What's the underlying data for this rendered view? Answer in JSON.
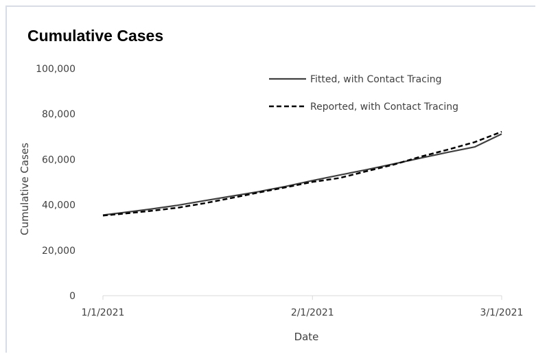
{
  "chart_data": {
    "type": "line",
    "title": "Cumulative Cases",
    "xlabel": "Date",
    "ylabel": "Cumulative Cases",
    "xlim": [
      "2021-01-01",
      "2021-03-01"
    ],
    "ylim": [
      0,
      100000
    ],
    "y_ticks": [
      0,
      20000,
      40000,
      60000,
      80000,
      100000
    ],
    "y_tick_labels": [
      "0",
      "20,000",
      "40,000",
      "60,000",
      "80,000",
      "100,000"
    ],
    "x_tick_labels": [
      "1/1/2021",
      "2/1/2021",
      "3/1/2021"
    ],
    "x_ticks": [
      "2021-01-01",
      "2021-02-01",
      "2021-03-01"
    ],
    "grid": false,
    "legend_position": "top-right",
    "series": [
      {
        "name": "Fitted, with Contact Tracing",
        "style": "solid",
        "color": "#404040",
        "points": [
          [
            "2021-01-01",
            35500
          ],
          [
            "2021-01-04",
            36600
          ],
          [
            "2021-01-08",
            38100
          ],
          [
            "2021-01-12",
            39800
          ],
          [
            "2021-01-16",
            41800
          ],
          [
            "2021-01-20",
            43800
          ],
          [
            "2021-01-24",
            45800
          ],
          [
            "2021-01-28",
            48100
          ],
          [
            "2021-02-01",
            50700
          ],
          [
            "2021-02-05",
            53100
          ],
          [
            "2021-02-09",
            55500
          ],
          [
            "2021-02-13",
            58000
          ],
          [
            "2021-02-17",
            60600
          ],
          [
            "2021-02-21",
            63100
          ],
          [
            "2021-02-25",
            65500
          ],
          [
            "2021-03-01",
            71200
          ]
        ]
      },
      {
        "name": "Reported, with Contact Tracing",
        "style": "dashed",
        "color": "#000000",
        "points": [
          [
            "2021-01-01",
            35300
          ],
          [
            "2021-01-04",
            36100
          ],
          [
            "2021-01-08",
            37300
          ],
          [
            "2021-01-12",
            38700
          ],
          [
            "2021-01-16",
            40700
          ],
          [
            "2021-01-20",
            43000
          ],
          [
            "2021-01-24",
            45400
          ],
          [
            "2021-01-28",
            47700
          ],
          [
            "2021-02-01",
            50100
          ],
          [
            "2021-02-05",
            51800
          ],
          [
            "2021-02-09",
            54800
          ],
          [
            "2021-02-13",
            57700
          ],
          [
            "2021-02-17",
            61200
          ],
          [
            "2021-02-21",
            64300
          ],
          [
            "2021-02-25",
            67600
          ],
          [
            "2021-03-01",
            72200
          ]
        ]
      }
    ]
  }
}
